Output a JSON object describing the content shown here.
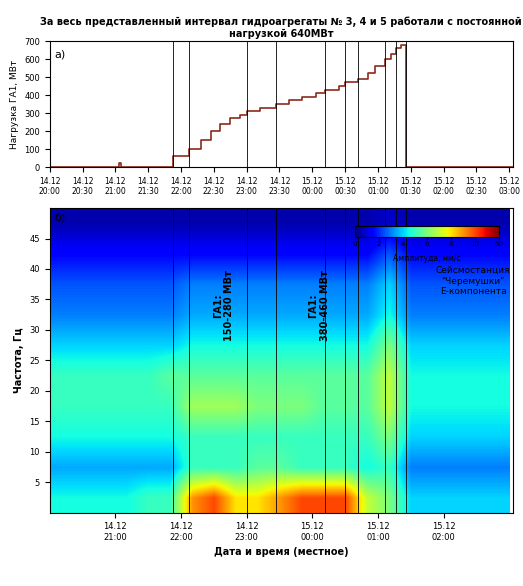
{
  "chart_data": [
    {
      "type": "line",
      "title": "За весь представленный интервал гидроагрегаты № 3, 4 и 5 работали с постоянной нагрузкой 640МВт",
      "panel_label": "а)",
      "y_label": "Нагрузка ГА1, МВт",
      "color": "#8b2a1a",
      "line_style": "steps",
      "grid": false,
      "x": [
        20.0,
        21.05,
        21.08,
        21.88,
        22.12,
        22.3,
        22.45,
        22.6,
        22.75,
        22.9,
        23.0,
        23.2,
        23.45,
        23.65,
        23.85,
        24.05,
        24.2,
        24.4,
        24.5,
        24.7,
        24.85,
        24.95,
        25.1,
        25.2,
        25.27,
        25.35,
        25.42,
        27.05
      ],
      "values": [
        0,
        20,
        0,
        60,
        100,
        150,
        200,
        240,
        270,
        290,
        310,
        330,
        350,
        370,
        390,
        410,
        430,
        450,
        470,
        490,
        520,
        560,
        600,
        630,
        660,
        680,
        0,
        0
      ],
      "vertical_lines": [
        21.88,
        22.12,
        23.0,
        23.45,
        24.2,
        24.5,
        24.7,
        25.1,
        25.27,
        25.42
      ],
      "xlim": [
        20.0,
        27.05
      ],
      "xticks": [
        {
          "value": 20.0,
          "label": "14.12\n20:00"
        },
        {
          "value": 20.5,
          "label": "14.12\n20:30"
        },
        {
          "value": 21.0,
          "label": "14.12\n21:00"
        },
        {
          "value": 21.5,
          "label": "14.12\n21:30"
        },
        {
          "value": 22.0,
          "label": "14.12\n22:00"
        },
        {
          "value": 22.5,
          "label": "14.12\n22:30"
        },
        {
          "value": 23.0,
          "label": "14.12\n23:00"
        },
        {
          "value": 23.5,
          "label": "14.12\n23:30"
        },
        {
          "value": 24.0,
          "label": "15.12\n00:00"
        },
        {
          "value": 24.5,
          "label": "15.12\n00:30"
        },
        {
          "value": 25.0,
          "label": "15.12\n01:00"
        },
        {
          "value": 25.5,
          "label": "15.12\n01:30"
        },
        {
          "value": 26.0,
          "label": "15.12\n02:00"
        },
        {
          "value": 26.5,
          "label": "15.12\n02:30"
        },
        {
          "value": 27.0,
          "label": "15.12\n03:00"
        }
      ],
      "ylim": [
        0,
        700
      ],
      "yticks": [
        0,
        100,
        200,
        300,
        400,
        500,
        600,
        700
      ]
    },
    {
      "type": "heatmap",
      "panel_label": "б)",
      "x_label": "Дата и время (местное)",
      "y_label": "Частота, Гц",
      "x_edges": [
        20.0,
        20.3333,
        20.6667,
        21.0,
        21.3333,
        21.6667,
        22.0,
        22.3333,
        22.6667,
        23.0,
        23.3333,
        23.6667,
        24.0,
        24.3333,
        24.6667,
        25.0,
        25.3333,
        25.6667,
        26.0,
        26.3333,
        26.6667,
        27.0
      ],
      "y_edges": [
        0,
        5,
        10,
        15,
        20,
        25,
        30,
        35,
        40,
        45,
        50
      ],
      "cells": [
        [
          4.5,
          4.5,
          4.5,
          4.5,
          5,
          5,
          9,
          10,
          8,
          8,
          9,
          10,
          10,
          10,
          7,
          6,
          4,
          4,
          4,
          4,
          4
        ],
        [
          3.5,
          3.5,
          3.5,
          3.5,
          3.5,
          3.5,
          5,
          5,
          5,
          5.5,
          5.5,
          5,
          5,
          5,
          4.5,
          5,
          3,
          3,
          3,
          3,
          3
        ],
        [
          4.5,
          4.5,
          4.5,
          4.5,
          4.5,
          4.5,
          5,
          5,
          5,
          5,
          5,
          5,
          5,
          5,
          5,
          6,
          4,
          4,
          4,
          4,
          4
        ],
        [
          5,
          5,
          5,
          5,
          5,
          5,
          6.5,
          6.5,
          6.5,
          6,
          6,
          6,
          5.5,
          5.5,
          5.5,
          7,
          4.5,
          4.5,
          4.5,
          4.5,
          4.5
        ],
        [
          5,
          5,
          5,
          5,
          5,
          5.5,
          5.5,
          5.5,
          5.5,
          5.5,
          5.5,
          5.5,
          5.5,
          5.5,
          5.5,
          7,
          4.5,
          4.5,
          4.5,
          4.5,
          4.5
        ],
        [
          4,
          4,
          4,
          4,
          4,
          4,
          4.5,
          4.5,
          4.5,
          4.5,
          4.5,
          4.5,
          4.5,
          4.5,
          4.5,
          6,
          4,
          4,
          4,
          4,
          4
        ],
        [
          3,
          3,
          3,
          3,
          3,
          3,
          3.5,
          3.5,
          3.5,
          3.5,
          3.5,
          3.5,
          3.5,
          3.5,
          3.5,
          4.5,
          3,
          3,
          3,
          3,
          3
        ],
        [
          2.5,
          2.5,
          2.5,
          2.5,
          2.5,
          2.5,
          3,
          3,
          3,
          3,
          3,
          3,
          3,
          3,
          3,
          4,
          2.5,
          2.5,
          2.5,
          2.5,
          2.5
        ],
        [
          1.5,
          1.5,
          1.5,
          1.5,
          1.5,
          1.5,
          1.5,
          1.5,
          1.5,
          1.5,
          1.5,
          1.5,
          1.5,
          1.5,
          1.5,
          2.5,
          1.5,
          1.5,
          1.5,
          1.5,
          1.5
        ],
        [
          0.5,
          0.5,
          0.5,
          0.5,
          0.5,
          0.5,
          0.5,
          0.5,
          0.5,
          0.5,
          0.5,
          0.5,
          0.5,
          0.5,
          0.5,
          0.8,
          0.5,
          0.5,
          0.5,
          0.5,
          0.5
        ]
      ],
      "colorbar": {
        "label": "Амплитуда, нм/с",
        "range": [
          0,
          50
        ],
        "ticks": [
          0,
          2,
          4,
          6,
          8,
          10,
          50
        ]
      },
      "annotations": [
        {
          "text": "ГА1:\n150-280 МВт",
          "x": 22.65,
          "y": 34
        },
        {
          "text": "ГА1:\n380-460 МВт",
          "x": 24.1,
          "y": 34
        },
        {
          "text": "Сейсмостанция\n\"Черемушки\"\nЕ-компонента",
          "x": 26.45,
          "y": 38
        }
      ],
      "vertical_lines": [
        21.88,
        22.12,
        23.0,
        23.45,
        24.2,
        24.5,
        24.7,
        25.1,
        25.27,
        25.42
      ],
      "xlim": [
        20.0,
        27.05
      ],
      "xticks": [
        {
          "value": 21.0,
          "label": "14.12\n21:00"
        },
        {
          "value": 22.0,
          "label": "14.12\n22:00"
        },
        {
          "value": 23.0,
          "label": "14.12\n23:00"
        },
        {
          "value": 24.0,
          "label": "15.12\n00:00"
        },
        {
          "value": 25.0,
          "label": "15.12\n01:00"
        },
        {
          "value": 26.0,
          "label": "15.12\n02:00"
        }
      ],
      "ylim": [
        0,
        50
      ],
      "yticks": [
        5,
        10,
        15,
        20,
        25,
        30,
        35,
        40,
        45
      ]
    }
  ]
}
